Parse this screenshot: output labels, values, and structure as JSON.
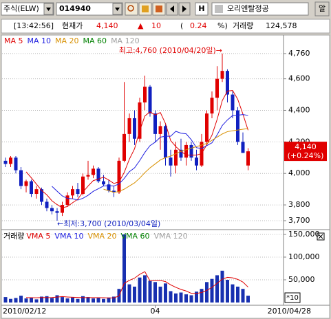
{
  "toolbar": {
    "market": "주식(ELW)",
    "code": "014940",
    "h_button": "H",
    "name": "오리엔탈정공",
    "alarm_button": "알"
  },
  "quote_bar": {
    "time": "[13:42:56]",
    "price_label": "현재가",
    "price": "4,140",
    "change_sign": "▲",
    "change": "10",
    "pct_open": "(",
    "pct": "0.24",
    "pct_close": "%)",
    "volume_label": "거래량",
    "volume": "124,578"
  },
  "chart_data": [
    {
      "type": "candlestick",
      "categories": [
        "2010/02/12",
        null,
        null,
        null,
        null,
        null,
        null,
        null,
        null,
        null,
        null,
        null,
        null,
        null,
        null,
        null,
        null,
        null,
        null,
        null,
        null,
        null,
        null,
        null,
        null,
        null,
        null,
        null,
        null,
        "04",
        null,
        null,
        null,
        null,
        null,
        null,
        null,
        null,
        null,
        null,
        null,
        null,
        null,
        null,
        null,
        null,
        null,
        "2010/04/28"
      ],
      "open": [
        4080,
        4060,
        4100,
        4020,
        3920,
        3950,
        3870,
        3900,
        3820,
        3780,
        3760,
        3750,
        3800,
        3860,
        3900,
        3870,
        3980,
        3990,
        4030,
        3950,
        3930,
        3890,
        3880,
        4080,
        4250,
        4350,
        4220,
        4450,
        4550,
        4380,
        4250,
        4300,
        4100,
        4050,
        4150,
        4100,
        4180,
        4100,
        4050,
        4200,
        4380,
        4480,
        4600,
        4650,
        4500,
        4400,
        4200,
        4050
      ],
      "high": [
        4100,
        4110,
        4110,
        4040,
        3960,
        3960,
        3920,
        3910,
        3840,
        3800,
        3780,
        3820,
        3880,
        3920,
        3940,
        4000,
        4080,
        4050,
        4040,
        3990,
        3960,
        3920,
        4100,
        4580,
        4380,
        4400,
        4480,
        4620,
        4560,
        4400,
        4330,
        4310,
        4150,
        4200,
        4220,
        4200,
        4200,
        4150,
        4250,
        4400,
        4520,
        4680,
        4760,
        4660,
        4520,
        4420,
        4260,
        4160
      ],
      "low": [
        4040,
        4040,
        4000,
        3900,
        3880,
        3850,
        3840,
        3800,
        3760,
        3740,
        3700,
        3730,
        3790,
        3840,
        3850,
        3860,
        3960,
        3970,
        3940,
        3920,
        3880,
        3850,
        3870,
        4070,
        4200,
        4180,
        4200,
        4400,
        4360,
        4200,
        4150,
        4050,
        3980,
        4000,
        4080,
        4050,
        4080,
        4020,
        4040,
        4180,
        4350,
        4400,
        4580,
        4450,
        4350,
        4180,
        4130,
        4020
      ],
      "close": [
        4060,
        4100,
        4020,
        3920,
        3950,
        3870,
        3900,
        3820,
        3780,
        3760,
        3750,
        3800,
        3860,
        3900,
        3870,
        3980,
        3990,
        4030,
        3950,
        3930,
        3890,
        3880,
        4080,
        4250,
        4350,
        4220,
        4450,
        4550,
        4380,
        4250,
        4300,
        4100,
        4050,
        4150,
        4100,
        4180,
        4100,
        4050,
        4200,
        4380,
        4480,
        4600,
        4650,
        4500,
        4400,
        4200,
        4130,
        4140
      ],
      "up_color": "#e00000",
      "down_color": "#1020c0",
      "series": [
        {
          "name": "MA 5",
          "color": "#e00000",
          "values": [
            null,
            null,
            null,
            null,
            4010,
            3972,
            3932,
            3892,
            3864,
            3826,
            3802,
            3782,
            3790,
            3814,
            3836,
            3882,
            3920,
            3954,
            3964,
            3976,
            3958,
            3936,
            3946,
            4006,
            4090,
            4156,
            4270,
            4364,
            4390,
            4370,
            4386,
            4316,
            4208,
            4170,
            4140,
            4116,
            4116,
            4116,
            4126,
            4182,
            4242,
            4342,
            4462,
            4522,
            4526,
            4470,
            4376,
            4274
          ]
        },
        {
          "name": "MA 10",
          "color": "#2020e0",
          "values": [
            null,
            null,
            null,
            null,
            null,
            null,
            null,
            null,
            null,
            3918,
            3887,
            3857,
            3841,
            3839,
            3831,
            3842,
            3861,
            3886,
            3903,
            3920,
            3922,
            3920,
            3933,
            3968,
            4011,
            4035,
            4081,
            4133,
            4176,
            4198,
            4230,
            4236,
            4236,
            4267,
            4255,
            4251,
            4213,
            4163,
            4158,
            4176,
            4194,
            4244,
            4304,
            4339,
            4367,
            4369,
            4373,
            4368
          ]
        },
        {
          "name": "MA 20",
          "color": "#d89000",
          "values": [
            null,
            null,
            null,
            null,
            null,
            null,
            null,
            null,
            null,
            null,
            null,
            null,
            null,
            null,
            null,
            null,
            null,
            null,
            null,
            3900,
            3890,
            3880,
            3885,
            3900,
            3920,
            3940,
            3970,
            4005,
            4035,
            4060,
            4085,
            4100,
            4110,
            4125,
            4140,
            4150,
            4160,
            4170,
            4180,
            4190,
            4210,
            4230,
            4250,
            4265,
            4270,
            4275,
            4280,
            4285
          ]
        },
        {
          "name": "MA 60",
          "color": "#008000"
        },
        {
          "name": "MA 120",
          "color": "#a0a0a0"
        }
      ],
      "ylim": [
        3652,
        4860
      ],
      "yticks": [
        {
          "value": 3700,
          "label": "3,700"
        },
        {
          "value": 3800,
          "label": "3,800"
        },
        {
          "value": 4000,
          "label": "4,000"
        },
        {
          "value": 4200,
          "label": "4,200"
        },
        {
          "value": 4400,
          "label": "4,400"
        },
        {
          "value": 4600,
          "label": "4,600"
        },
        {
          "value": 4760,
          "label": "4,760"
        }
      ],
      "grid": true,
      "annotations": [
        {
          "text": "최고:4,760 (2010/04/20일)→",
          "color": "#e00000"
        },
        {
          "text": "←최저:3,700 (2010/03/04일)",
          "color": "#1020c0"
        }
      ],
      "current_label": [
        "4,140",
        "(+0.24%)"
      ]
    },
    {
      "type": "bar",
      "title": "거래량",
      "values": [
        12000,
        8000,
        10000,
        15000,
        9000,
        11000,
        7000,
        13000,
        14000,
        10000,
        16000,
        12000,
        9000,
        11000,
        8000,
        14000,
        12000,
        9000,
        10000,
        8000,
        11000,
        13000,
        30000,
        150000,
        40000,
        35000,
        55000,
        60000,
        48000,
        45000,
        35000,
        42000,
        25000,
        20000,
        22000,
        18000,
        16000,
        24000,
        30000,
        45000,
        52000,
        60000,
        70000,
        50000,
        40000,
        35000,
        30000,
        15000
      ],
      "color": "#1830b0",
      "series": [
        {
          "name": "VMA 5",
          "color": "#e00000",
          "values": [
            null,
            null,
            null,
            null,
            10800,
            10600,
            10400,
            11000,
            10800,
            11000,
            12000,
            13000,
            12200,
            11600,
            11200,
            10800,
            10800,
            10800,
            10600,
            10600,
            10000,
            10200,
            14400,
            42400,
            48800,
            53600,
            62000,
            68000,
            47600,
            48600,
            48600,
            46000,
            39000,
            33400,
            28800,
            25400,
            20200,
            20000,
            22000,
            26600,
            33400,
            42200,
            51400,
            55400,
            54400,
            51000,
            45000,
            34000
          ]
        },
        {
          "name": "VMA 10",
          "color": "#2020e0"
        },
        {
          "name": "VMA 20",
          "color": "#d89000"
        },
        {
          "name": "VMA 60",
          "color": "#008000"
        },
        {
          "name": "VMA 120",
          "color": "#a0a0a0"
        }
      ],
      "ylim": [
        -3000,
        157500
      ],
      "yticks": [
        {
          "value": 50000,
          "label": "50,000"
        },
        {
          "value": 100000,
          "label": "100,000"
        },
        {
          "value": 150000,
          "label": "150,000"
        }
      ],
      "grid": true,
      "unit_label": "*10"
    }
  ]
}
